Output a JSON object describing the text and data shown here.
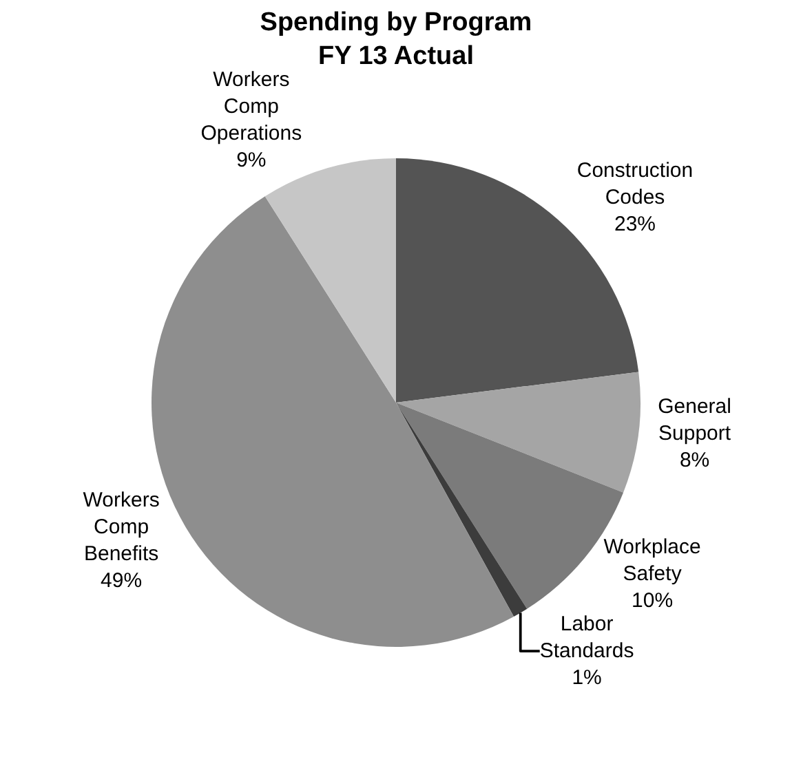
{
  "chart_data": {
    "type": "pie",
    "title": "Spending by Program\nFY 13 Actual",
    "categories": [
      "Construction Codes",
      "General Support",
      "Workplace Safety",
      "Labor Standards",
      "Workers Comp Benefits",
      "Workers Comp Operations"
    ],
    "values": [
      23,
      8,
      10,
      1,
      49,
      9
    ],
    "value_labels": [
      "23%",
      "8%",
      "10%",
      "1%",
      "49%",
      "9%"
    ],
    "colors": [
      "#545454",
      "#a5a5a5",
      "#7b7b7b",
      "#3c3c3c",
      "#8e8e8e",
      "#c6c6c6"
    ],
    "legend": false
  }
}
